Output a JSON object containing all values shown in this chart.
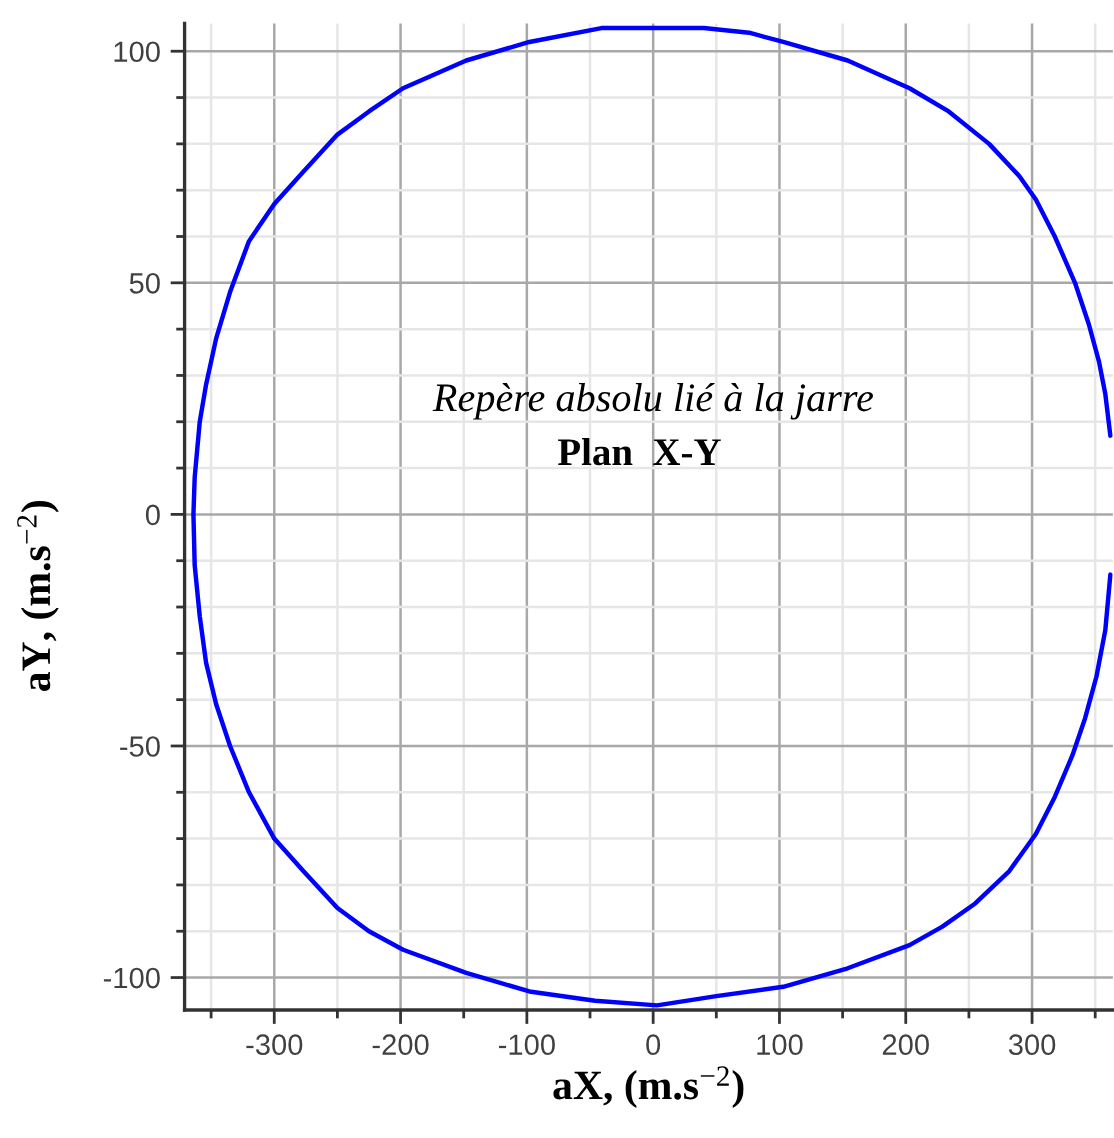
{
  "chart_data": {
    "type": "line",
    "title": "Repère absolu lié à la jarre",
    "subtitle": "Plan  X-Y",
    "xlabel": "aX, (m.s$^{−2}$)",
    "ylabel": "aY, (m.s$^{−2}$)",
    "series": [
      {
        "color": "#0000ff",
        "x": [
          362,
          358,
          353,
          345,
          334,
          318,
          303,
          290,
          266,
          234,
          203,
          154,
          103,
          76,
          40,
          3,
          -41,
          -98,
          -148,
          -198,
          -225,
          -250,
          -277,
          -300,
          -320,
          -335,
          -346,
          -354,
          -359,
          -363,
          -364,
          -363,
          -359,
          -354,
          -346,
          -335,
          -320,
          -300,
          -277,
          -250,
          -225,
          -198,
          -148,
          -98,
          -46,
          3,
          50,
          103,
          154,
          203,
          229,
          255,
          282,
          303,
          318,
          332,
          342,
          351,
          358,
          362
        ],
        "values": [
          17,
          26,
          33,
          41,
          50,
          60,
          68,
          73,
          80,
          87,
          92,
          98,
          102,
          104,
          105,
          105,
          105,
          102,
          98,
          92,
          87,
          82,
          74,
          67,
          59,
          48,
          38,
          28,
          20,
          8,
          0,
          -11,
          -22,
          -32,
          -41,
          -50,
          -60,
          -70,
          -77,
          -85,
          -90,
          -94,
          -99,
          -103,
          -105,
          -106,
          -104,
          -102,
          -98,
          -93,
          -89,
          -84,
          -77,
          -69,
          -61,
          -52,
          -44,
          -35,
          -25,
          -13
        ]
      }
    ],
    "xlim": [
      -371,
      364
    ],
    "xticks": [
      {
        "value": -350,
        "label": null
      },
      -300,
      {
        "value": -250,
        "label": null
      },
      -200,
      {
        "value": -150,
        "label": null
      },
      -100,
      {
        "value": -50,
        "label": null
      },
      0,
      {
        "value": 50,
        "label": null
      },
      100,
      {
        "value": 150,
        "label": null
      },
      200,
      {
        "value": 250,
        "label": null
      },
      300,
      {
        "value": 350,
        "label": null
      }
    ],
    "ylim": [
      -107,
      106
    ],
    "yticks": [
      -100,
      {
        "value": -90,
        "label": null
      },
      {
        "value": -80,
        "label": null
      },
      {
        "value": -70,
        "label": null
      },
      {
        "value": -60,
        "label": null
      },
      -50,
      {
        "value": -40,
        "label": null
      },
      {
        "value": -30,
        "label": null
      },
      {
        "value": -20,
        "label": null
      },
      {
        "value": -10,
        "label": null
      },
      0,
      {
        "value": 10,
        "label": null
      },
      {
        "value": 20,
        "label": null
      },
      {
        "value": 30,
        "label": null
      },
      {
        "value": 40,
        "label": null
      },
      50,
      {
        "value": 60,
        "label": null
      },
      {
        "value": 70,
        "label": null
      },
      {
        "value": 80,
        "label": null
      },
      {
        "value": 90,
        "label": null
      },
      100
    ],
    "grid": true,
    "marker": "none",
    "line_style": "solid"
  }
}
